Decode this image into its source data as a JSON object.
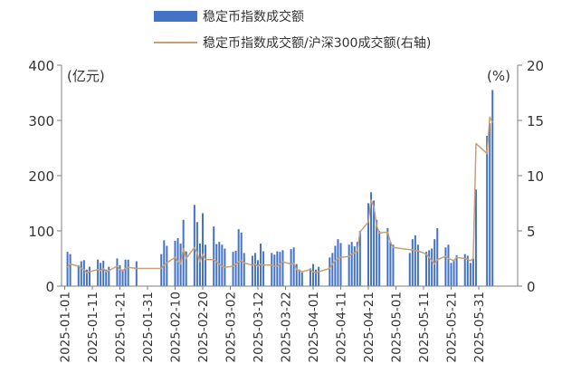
{
  "chart_data": {
    "type": "bar",
    "legend_position": "top",
    "grid": false,
    "left_axis": {
      "unit_label": "(亿元)",
      "ylim": [
        0,
        400
      ],
      "ticks": [
        "0",
        "100",
        "200",
        "300",
        "400"
      ]
    },
    "right_axis": {
      "unit_label": "(%)",
      "ylim": [
        0,
        20
      ],
      "ticks": [
        "0",
        "5",
        "10",
        "15",
        "20"
      ]
    },
    "x_ticks": [
      "2025-01-01",
      "2025-01-11",
      "2025-01-21",
      "2025-01-31",
      "2025-02-10",
      "2025-02-20",
      "2025-03-02",
      "2025-03-12",
      "2025-03-22",
      "2025-04-01",
      "2025-04-11",
      "2025-04-21",
      "2025-05-01",
      "2025-05-11",
      "2025-05-21",
      "2025-05-31"
    ],
    "series": [
      {
        "name": "稳定币指数成交额",
        "type": "bar",
        "axis": "left",
        "color": "#4472C4",
        "dates": [
          "2025-01-02",
          "2025-01-03",
          "2025-01-06",
          "2025-01-07",
          "2025-01-08",
          "2025-01-09",
          "2025-01-10",
          "2025-01-13",
          "2025-01-14",
          "2025-01-15",
          "2025-01-16",
          "2025-01-17",
          "2025-01-20",
          "2025-01-21",
          "2025-01-22",
          "2025-01-23",
          "2025-01-24",
          "2025-01-27",
          "2025-02-05",
          "2025-02-06",
          "2025-02-07",
          "2025-02-10",
          "2025-02-11",
          "2025-02-12",
          "2025-02-13",
          "2025-02-14",
          "2025-02-17",
          "2025-02-18",
          "2025-02-19",
          "2025-02-20",
          "2025-02-21",
          "2025-02-24",
          "2025-02-25",
          "2025-02-26",
          "2025-02-27",
          "2025-02-28",
          "2025-03-03",
          "2025-03-04",
          "2025-03-05",
          "2025-03-06",
          "2025-03-07",
          "2025-03-10",
          "2025-03-11",
          "2025-03-12",
          "2025-03-13",
          "2025-03-14",
          "2025-03-17",
          "2025-03-18",
          "2025-03-19",
          "2025-03-20",
          "2025-03-21",
          "2025-03-24",
          "2025-03-25",
          "2025-03-26",
          "2025-03-27",
          "2025-03-28",
          "2025-03-31",
          "2025-04-01",
          "2025-04-02",
          "2025-04-03",
          "2025-04-07",
          "2025-04-08",
          "2025-04-09",
          "2025-04-10",
          "2025-04-11",
          "2025-04-14",
          "2025-04-15",
          "2025-04-16",
          "2025-04-17",
          "2025-04-18",
          "2025-04-21",
          "2025-04-22",
          "2025-04-23",
          "2025-04-24",
          "2025-04-25",
          "2025-04-28",
          "2025-04-29",
          "2025-04-30",
          "2025-05-06",
          "2025-05-07",
          "2025-05-08",
          "2025-05-09",
          "2025-05-12",
          "2025-05-13",
          "2025-05-14",
          "2025-05-15",
          "2025-05-16",
          "2025-05-19",
          "2025-05-20",
          "2025-05-21",
          "2025-05-22",
          "2025-05-23",
          "2025-05-26",
          "2025-05-27",
          "2025-05-28",
          "2025-05-29",
          "2025-05-30",
          "2025-06-03",
          "2025-06-04",
          "2025-06-05"
        ],
        "values": [
          62,
          58,
          38,
          45,
          47,
          30,
          35,
          48,
          42,
          46,
          30,
          35,
          50,
          38,
          30,
          48,
          48,
          45,
          58,
          83,
          73,
          82,
          87,
          77,
          120,
          63,
          147,
          116,
          77,
          132,
          75,
          108,
          76,
          80,
          75,
          68,
          62,
          64,
          103,
          97,
          60,
          55,
          60,
          47,
          77,
          63,
          60,
          57,
          63,
          62,
          65,
          67,
          70,
          40,
          30,
          25,
          32,
          40,
          30,
          35,
          52,
          60,
          73,
          85,
          78,
          75,
          80,
          72,
          80,
          100,
          150,
          170,
          155,
          120,
          100,
          105,
          80,
          75,
          60,
          85,
          92,
          75,
          62,
          65,
          68,
          85,
          105,
          70,
          75,
          42,
          48,
          56,
          58,
          55,
          42,
          50,
          175,
          272,
          295,
          355
        ]
      },
      {
        "name": "稳定币指数成交额/沪深300成交额(右轴)",
        "type": "line",
        "axis": "right",
        "color": "#C9A070",
        "dates": [
          "2025-01-02",
          "2025-01-03",
          "2025-01-06",
          "2025-01-07",
          "2025-01-08",
          "2025-01-09",
          "2025-01-10",
          "2025-01-13",
          "2025-01-14",
          "2025-01-15",
          "2025-01-16",
          "2025-01-17",
          "2025-01-20",
          "2025-01-21",
          "2025-01-22",
          "2025-01-23",
          "2025-01-24",
          "2025-01-27",
          "2025-02-05",
          "2025-02-06",
          "2025-02-07",
          "2025-02-10",
          "2025-02-11",
          "2025-02-12",
          "2025-02-13",
          "2025-02-14",
          "2025-02-17",
          "2025-02-18",
          "2025-02-19",
          "2025-02-20",
          "2025-02-21",
          "2025-02-24",
          "2025-02-25",
          "2025-02-26",
          "2025-02-27",
          "2025-02-28",
          "2025-03-03",
          "2025-03-04",
          "2025-03-05",
          "2025-03-06",
          "2025-03-07",
          "2025-03-10",
          "2025-03-11",
          "2025-03-12",
          "2025-03-13",
          "2025-03-14",
          "2025-03-17",
          "2025-03-18",
          "2025-03-19",
          "2025-03-20",
          "2025-03-21",
          "2025-03-24",
          "2025-03-25",
          "2025-03-26",
          "2025-03-27",
          "2025-03-28",
          "2025-03-31",
          "2025-04-01",
          "2025-04-02",
          "2025-04-03",
          "2025-04-07",
          "2025-04-08",
          "2025-04-09",
          "2025-04-10",
          "2025-04-11",
          "2025-04-14",
          "2025-04-15",
          "2025-04-16",
          "2025-04-17",
          "2025-04-18",
          "2025-04-21",
          "2025-04-22",
          "2025-04-23",
          "2025-04-24",
          "2025-04-25",
          "2025-04-28",
          "2025-04-29",
          "2025-04-30",
          "2025-05-06",
          "2025-05-07",
          "2025-05-08",
          "2025-05-09",
          "2025-05-12",
          "2025-05-13",
          "2025-05-14",
          "2025-05-15",
          "2025-05-16",
          "2025-05-19",
          "2025-05-20",
          "2025-05-21",
          "2025-05-22",
          "2025-05-23",
          "2025-05-26",
          "2025-05-27",
          "2025-05-28",
          "2025-05-29",
          "2025-05-30",
          "2025-06-03",
          "2025-06-04",
          "2025-06-05"
        ],
        "values": [
          1.7,
          2.0,
          1.8,
          1.6,
          1.5,
          1.2,
          1.3,
          1.5,
          1.4,
          1.6,
          1.3,
          1.4,
          1.8,
          1.5,
          1.4,
          1.6,
          1.7,
          1.6,
          1.6,
          1.9,
          2.1,
          2.6,
          2.2,
          2.0,
          3.4,
          2.5,
          3.5,
          3.0,
          2.2,
          2.9,
          2.4,
          2.4,
          2.2,
          2.0,
          1.8,
          1.7,
          1.8,
          2.0,
          2.2,
          2.3,
          2.1,
          1.9,
          2.0,
          1.8,
          2.0,
          1.9,
          1.9,
          1.8,
          1.8,
          2.0,
          2.2,
          2.0,
          2.1,
          1.5,
          1.4,
          1.3,
          1.5,
          1.3,
          1.2,
          1.3,
          1.6,
          2.0,
          2.3,
          2.5,
          2.6,
          2.7,
          2.9,
          3.0,
          3.2,
          4.9,
          5.8,
          7.8,
          7.2,
          5.5,
          4.8,
          4.9,
          4.0,
          3.5,
          3.3,
          3.3,
          3.2,
          3.2,
          2.9,
          2.6,
          2.3,
          2.0,
          2.4,
          2.7,
          2.5,
          2.4,
          2.3,
          2.6,
          2.5,
          2.4,
          2.3,
          2.5,
          12.9,
          12.0,
          15.3,
          14.8
        ]
      }
    ]
  }
}
